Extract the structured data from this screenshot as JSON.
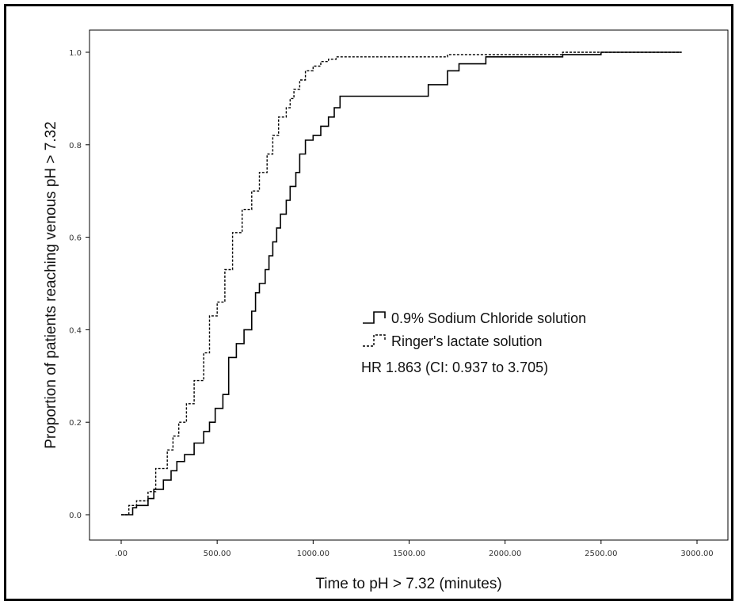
{
  "chart_data": {
    "type": "line",
    "step": true,
    "xlabel": "Time to pH > 7.32 (minutes)",
    "ylabel": "Proportion of patients reaching venous pH > 7.32",
    "xlim": [
      0,
      3000
    ],
    "ylim": [
      0,
      1
    ],
    "xticks": [
      0,
      500,
      1000,
      1500,
      2000,
      2500,
      3000
    ],
    "xtick_labels": [
      ".00",
      "500.00",
      "1000.00",
      "1500.00",
      "2000.00",
      "2500.00",
      "3000.00"
    ],
    "yticks": [
      0,
      0.2,
      0.4,
      0.6,
      0.8,
      1.0
    ],
    "ytick_labels": [
      "0.0",
      "0.2",
      "0.4",
      "0.6",
      "0.8",
      "1.0"
    ],
    "legend": {
      "position": "center-right"
    },
    "annotation": "HR 1.863 (CI: 0.937 to 3.705)",
    "series": [
      {
        "name": "0.9% Sodium Chloride solution",
        "style": "solid",
        "color": "#000000",
        "x": [
          0,
          60,
          80,
          140,
          170,
          220,
          260,
          290,
          330,
          380,
          430,
          460,
          490,
          530,
          560,
          600,
          640,
          680,
          700,
          720,
          750,
          770,
          790,
          810,
          830,
          860,
          880,
          910,
          930,
          960,
          1000,
          1040,
          1080,
          1110,
          1140,
          1500,
          1600,
          1700,
          1760,
          1900,
          2300,
          2500,
          2920
        ],
        "y": [
          0,
          0.015,
          0.02,
          0.035,
          0.055,
          0.075,
          0.095,
          0.115,
          0.13,
          0.155,
          0.18,
          0.2,
          0.23,
          0.26,
          0.34,
          0.37,
          0.4,
          0.44,
          0.48,
          0.5,
          0.53,
          0.56,
          0.59,
          0.62,
          0.65,
          0.68,
          0.71,
          0.74,
          0.78,
          0.81,
          0.82,
          0.84,
          0.86,
          0.88,
          0.905,
          0.905,
          0.93,
          0.96,
          0.975,
          0.99,
          0.995,
          1.0,
          1.0
        ]
      },
      {
        "name": "Ringer's lactate solution",
        "style": "dashed",
        "color": "#000000",
        "x": [
          0,
          40,
          80,
          140,
          180,
          240,
          270,
          300,
          340,
          380,
          430,
          460,
          500,
          540,
          580,
          630,
          680,
          720,
          760,
          790,
          820,
          860,
          880,
          900,
          930,
          960,
          1000,
          1040,
          1080,
          1120,
          1200,
          1700,
          2300,
          2920
        ],
        "y": [
          0,
          0.02,
          0.03,
          0.05,
          0.1,
          0.14,
          0.17,
          0.2,
          0.24,
          0.29,
          0.35,
          0.43,
          0.46,
          0.53,
          0.61,
          0.66,
          0.7,
          0.74,
          0.78,
          0.82,
          0.86,
          0.88,
          0.9,
          0.92,
          0.94,
          0.96,
          0.97,
          0.98,
          0.985,
          0.99,
          0.99,
          0.995,
          1.0,
          1.0
        ]
      }
    ]
  }
}
